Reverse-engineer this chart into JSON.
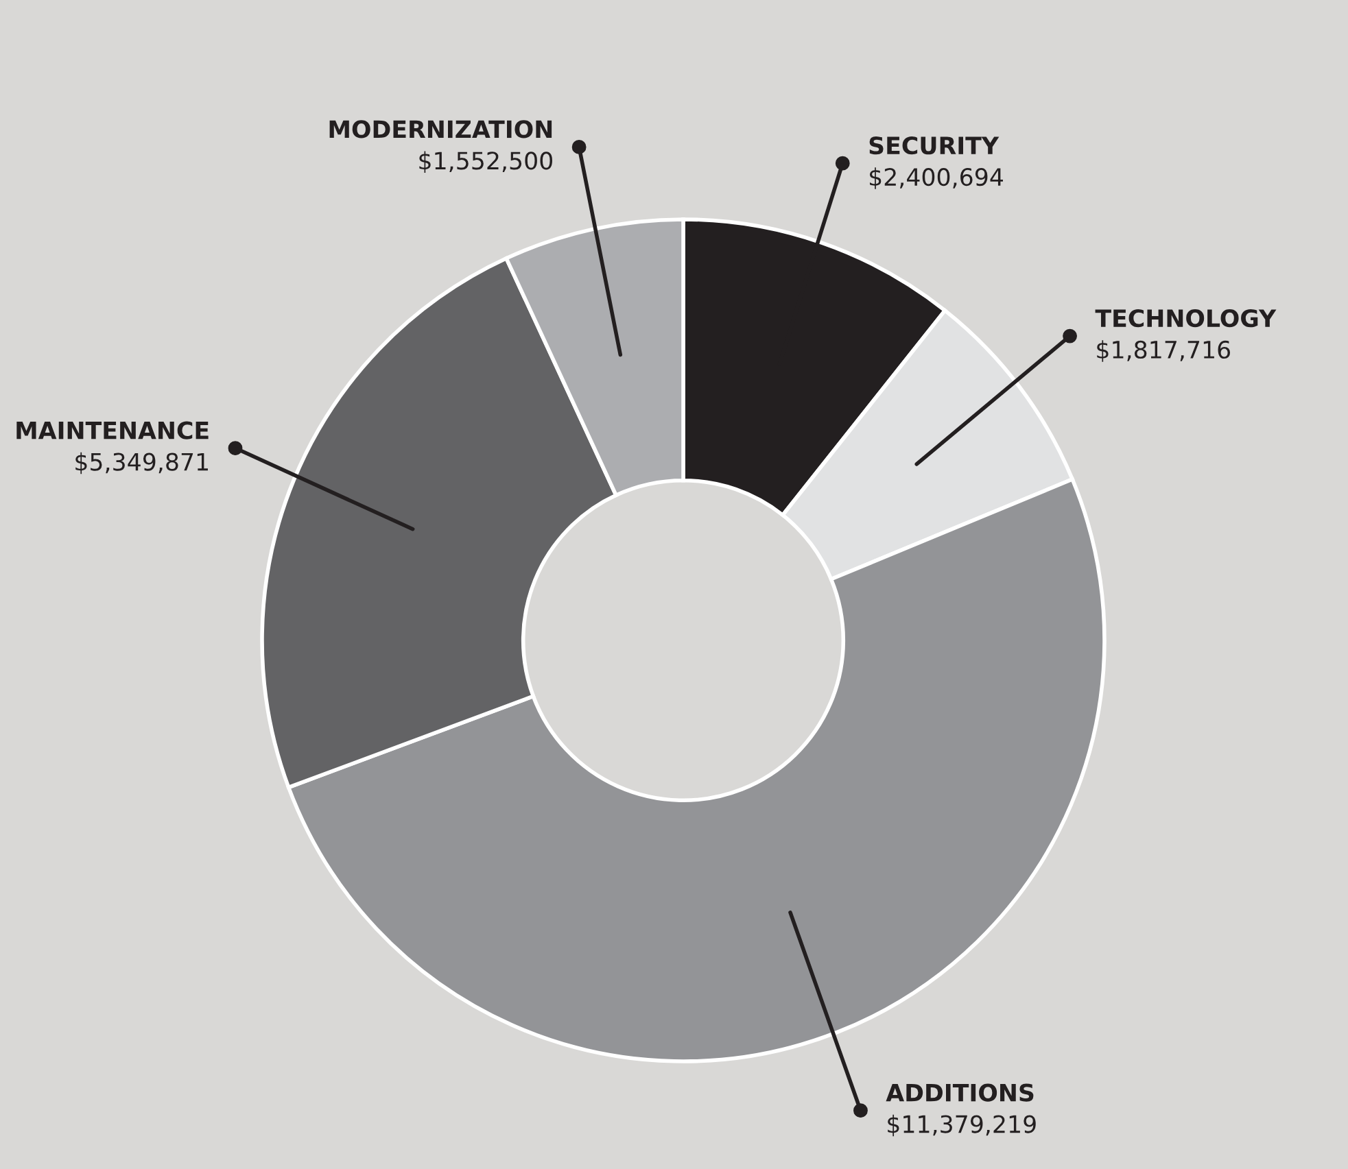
{
  "chart_data": {
    "type": "donut",
    "categories": [
      "SECURITY",
      "TECHNOLOGY",
      "ADDITIONS",
      "MAINTENANCE",
      "MODERNIZATION"
    ],
    "values": [
      2400694,
      1817716,
      11379219,
      5349871,
      1552500
    ],
    "value_labels": [
      "$2,400,694",
      "$1,817,716",
      "$11,379,219",
      "$5,349,871",
      "$1,552,500"
    ],
    "colors": [
      "#231f20",
      "#e1e2e3",
      "#939497",
      "#636365",
      "#acadb0"
    ]
  }
}
